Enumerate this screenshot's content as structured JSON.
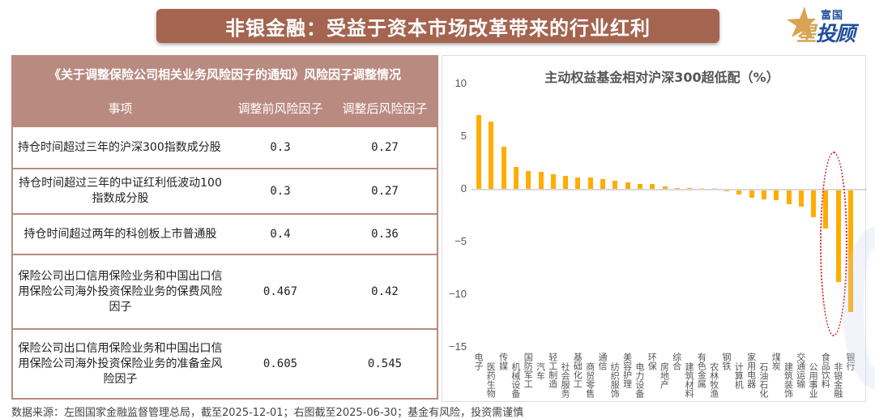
{
  "header": {
    "title": "非银金融：受益于资本市场改革带来的行业红利",
    "logo": {
      "top": "富国",
      "main_gold": "星",
      "main_blue": "投顾"
    }
  },
  "table": {
    "caption": "《关于调整保险公司相关业务风险因子的通知》风险因子调整情况",
    "columns": [
      "事项",
      "调整前风险因子",
      "调整后风险因子"
    ],
    "rows": [
      {
        "item": "持仓时间超过三年的沪深300指数成分股",
        "before": "0.3",
        "after": "0.27"
      },
      {
        "item": "持仓时间超过三年的中证红利低波动100指数成分股",
        "before": "0.3",
        "after": "0.27"
      },
      {
        "item": "持仓时间超过两年的科创板上市普通股",
        "before": "0.4",
        "after": "0.36"
      },
      {
        "item": "保险公司出口信用保险业务和中国出口信用保险公司海外投资保险业务的保费风险因子",
        "before": "0.467",
        "after": "0.42"
      },
      {
        "item": "保险公司出口信用保险业务和中国出口信用保险公司海外投资保险业务的准备金风险因子",
        "before": "0.605",
        "after": "0.545"
      }
    ]
  },
  "chart_data": {
    "type": "bar",
    "title": "主动权益基金相对沪深300超低配（%）",
    "xlabel": "",
    "ylabel": "",
    "ylim": [
      -15,
      10
    ],
    "yticks": [
      10,
      5,
      0,
      -5,
      -10,
      -15
    ],
    "grid": false,
    "legend": null,
    "bar_color": "#ffad00",
    "highlight_color": "#e02020",
    "annotation": "红色虚线椭圆圈出非银金融与银行（及食品饮料边缘）",
    "categories": [
      "电子",
      "医药生物",
      "传媒",
      "机械设备",
      "国防军工",
      "汽车",
      "轻工制造",
      "社会服务",
      "基础化工",
      "商贸零售",
      "通信",
      "纺织服饰",
      "美容护理",
      "电力设备",
      "环保",
      "房地产",
      "综合",
      "建筑材料",
      "有色金属",
      "农林牧渔",
      "钢铁",
      "计算机",
      "家用电器",
      "石油石化",
      "煤炭",
      "建筑装饰",
      "交通运输",
      "公用事业",
      "食品饮料",
      "非银金融",
      "银行"
    ],
    "values": [
      7.0,
      6.4,
      4.0,
      2.05,
      1.7,
      1.65,
      1.35,
      1.2,
      1.05,
      1.05,
      0.95,
      0.8,
      0.6,
      0.5,
      0.45,
      0.2,
      0.1,
      0.1,
      0.0,
      0.0,
      -0.1,
      -0.35,
      -0.7,
      -0.85,
      -0.95,
      -1.3,
      -1.5,
      -2.5,
      -3.6,
      -8.7,
      -11.5
    ]
  },
  "footer": {
    "source": "数据来源：左图国家金融监督管理总局，截至2025-12-01；右图截至2025-06-30；基金有风险，投资需谨慎"
  }
}
